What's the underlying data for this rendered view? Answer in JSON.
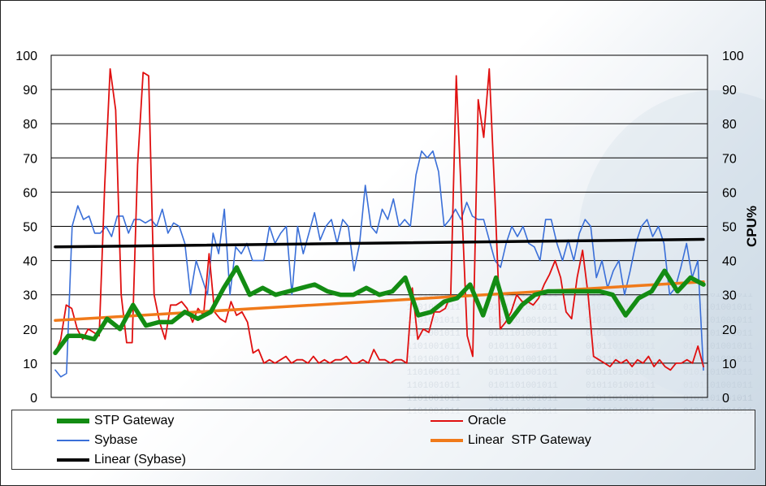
{
  "chart_data": {
    "type": "line",
    "title": "",
    "xlabel": "",
    "ylabel_left": "",
    "ylabel_right": "CPU%",
    "ylim": [
      0,
      100
    ],
    "yticks": [
      0,
      10,
      20,
      30,
      40,
      50,
      60,
      70,
      80,
      90,
      100
    ],
    "grid": true,
    "legend_position": "bottom",
    "series": [
      {
        "name": "STP Gateway",
        "color": "#138c13",
        "values": [
          13,
          18,
          18,
          17,
          23,
          20,
          27,
          21,
          22,
          22,
          25,
          23,
          25,
          32,
          38,
          30,
          32,
          30,
          31,
          32,
          33,
          31,
          30,
          30,
          32,
          30,
          31,
          35,
          24,
          25,
          28,
          29,
          33,
          24,
          35,
          22,
          27,
          30,
          31,
          31,
          31,
          31,
          31,
          30,
          24,
          29,
          31,
          37,
          31,
          35,
          33
        ]
      },
      {
        "name": "Oracle",
        "color": "#e01010",
        "values": [
          13,
          17,
          27,
          26,
          20,
          17,
          20,
          19,
          18,
          62,
          96,
          84,
          30,
          16,
          16,
          68,
          95,
          94,
          30,
          22,
          17,
          27,
          27,
          28,
          26,
          22,
          26,
          24,
          42,
          25,
          23,
          22,
          28,
          24,
          25,
          22,
          13,
          14,
          10,
          11,
          10,
          11,
          12,
          10,
          11,
          11,
          10,
          12,
          10,
          11,
          10,
          11,
          11,
          12,
          10,
          10,
          11,
          10,
          14,
          11,
          11,
          10,
          11,
          11,
          10,
          32,
          17,
          20,
          19,
          25,
          25,
          26,
          30,
          94,
          56,
          18,
          12,
          87,
          76,
          96,
          60,
          20,
          22,
          25,
          30,
          28,
          28,
          27,
          29,
          33,
          36,
          40,
          35,
          25,
          23,
          35,
          43,
          30,
          12,
          11,
          10,
          9,
          11,
          10,
          11,
          9,
          11,
          10,
          12,
          9,
          11,
          9,
          8,
          10,
          10,
          11,
          10,
          15,
          9
        ],
        "line_width": 2
      },
      {
        "name": "Sybase",
        "color": "#3a6fd8",
        "values": [
          8,
          6,
          7,
          50,
          56,
          52,
          53,
          48,
          48,
          50,
          47,
          53,
          53,
          48,
          52,
          52,
          51,
          52,
          50,
          55,
          48,
          51,
          50,
          45,
          30,
          40,
          35,
          30,
          48,
          42,
          55,
          30,
          44,
          42,
          45,
          40,
          40,
          40,
          50,
          45,
          48,
          50,
          30,
          50,
          42,
          48,
          54,
          46,
          50,
          52,
          45,
          52,
          50,
          37,
          45,
          62,
          50,
          48,
          55,
          52,
          58,
          50,
          52,
          50,
          65,
          72,
          70,
          72,
          66,
          50,
          52,
          55,
          52,
          57,
          53,
          52,
          52,
          46,
          40,
          38,
          45,
          50,
          47,
          50,
          45,
          44,
          40,
          52,
          52,
          45,
          40,
          46,
          40,
          48,
          52,
          50,
          35,
          40,
          32,
          37,
          40,
          30,
          37,
          45,
          50,
          52,
          47,
          50,
          45,
          30,
          32,
          38,
          45,
          35,
          40,
          8
        ]
      },
      {
        "name": "Linear  STP Gateway",
        "color": "#f07a1a",
        "trend_start": 22.5,
        "trend_end": 33.8
      },
      {
        "name": "Linear (Sybase)",
        "color": "#000000",
        "trend_start": 44,
        "trend_end": 46.2
      }
    ]
  },
  "legend": {
    "stp": "STP Gateway",
    "oracle": "Oracle",
    "sybase": "Sybase",
    "linear_stp": "Linear  STP Gateway",
    "linear_sybase": "Linear (Sybase)"
  }
}
